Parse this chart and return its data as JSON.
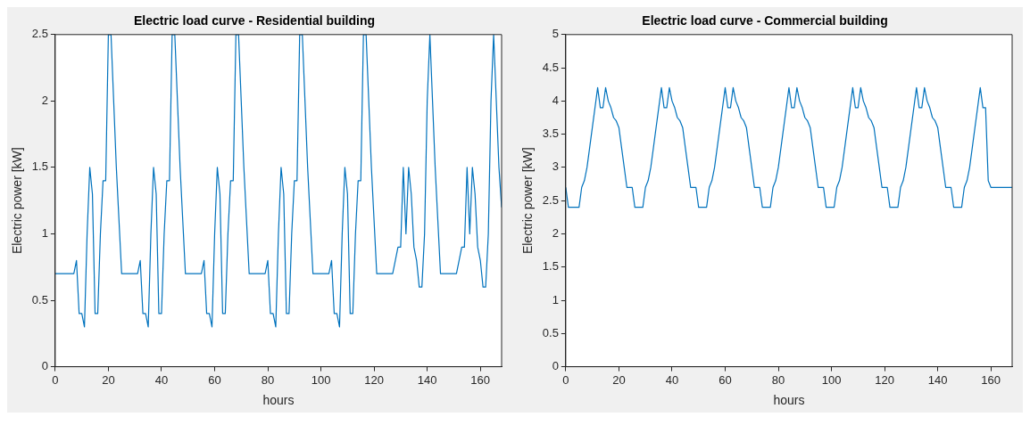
{
  "chart_data": [
    {
      "type": "line",
      "title": "Electric load curve - Residential building",
      "xlabel": "hours",
      "ylabel": "Electric power [kW]",
      "x": [
        0,
        1,
        2,
        3,
        4,
        5,
        6,
        7,
        8,
        9,
        10,
        11,
        12,
        13,
        14,
        15,
        16,
        17,
        18,
        19,
        20,
        21,
        22,
        23,
        24,
        25,
        26,
        27,
        28,
        29,
        30,
        31,
        32,
        33,
        34,
        35,
        36,
        37,
        38,
        39,
        40,
        41,
        42,
        43,
        44,
        45,
        46,
        47,
        48,
        49,
        50,
        51,
        52,
        53,
        54,
        55,
        56,
        57,
        58,
        59,
        60,
        61,
        62,
        63,
        64,
        65,
        66,
        67,
        68,
        69,
        70,
        71,
        72,
        73,
        74,
        75,
        76,
        77,
        78,
        79,
        80,
        81,
        82,
        83,
        84,
        85,
        86,
        87,
        88,
        89,
        90,
        91,
        92,
        93,
        94,
        95,
        96,
        97,
        98,
        99,
        100,
        101,
        102,
        103,
        104,
        105,
        106,
        107,
        108,
        109,
        110,
        111,
        112,
        113,
        114,
        115,
        116,
        117,
        118,
        119,
        120,
        121,
        122,
        123,
        124,
        125,
        126,
        127,
        128,
        129,
        130,
        131,
        132,
        133,
        134,
        135,
        136,
        137,
        138,
        139,
        140,
        141,
        142,
        143,
        144,
        145,
        146,
        147,
        148,
        149,
        150,
        151,
        152,
        153,
        154,
        155,
        156,
        157,
        158,
        159,
        160,
        161,
        162,
        163,
        164,
        165,
        166,
        167,
        168
      ],
      "series": [
        {
          "color": "#0072bd",
          "values": [
            0.7,
            0.7,
            0.7,
            0.7,
            0.7,
            0.7,
            0.7,
            0.7,
            0.8,
            0.4,
            0.4,
            0.3,
            1.0,
            1.5,
            1.3,
            0.4,
            0.4,
            1.0,
            1.4,
            1.4,
            2.5,
            2.5,
            2.0,
            1.5,
            1.1,
            0.7,
            0.7,
            0.7,
            0.7,
            0.7,
            0.7,
            0.7,
            0.8,
            0.4,
            0.4,
            0.3,
            1.0,
            1.5,
            1.3,
            0.4,
            0.4,
            1.0,
            1.4,
            1.4,
            2.5,
            2.5,
            2.0,
            1.5,
            1.1,
            0.7,
            0.7,
            0.7,
            0.7,
            0.7,
            0.7,
            0.7,
            0.8,
            0.4,
            0.4,
            0.3,
            1.0,
            1.5,
            1.3,
            0.4,
            0.4,
            1.0,
            1.4,
            1.4,
            2.5,
            2.5,
            2.0,
            1.5,
            1.1,
            0.7,
            0.7,
            0.7,
            0.7,
            0.7,
            0.7,
            0.7,
            0.8,
            0.4,
            0.4,
            0.3,
            1.0,
            1.5,
            1.3,
            0.4,
            0.4,
            1.0,
            1.4,
            1.4,
            2.5,
            2.5,
            2.0,
            1.5,
            1.1,
            0.7,
            0.7,
            0.7,
            0.7,
            0.7,
            0.7,
            0.7,
            0.8,
            0.4,
            0.4,
            0.3,
            1.0,
            1.5,
            1.3,
            0.4,
            0.4,
            1.0,
            1.4,
            1.4,
            2.5,
            2.5,
            2.0,
            1.5,
            1.1,
            0.7,
            0.7,
            0.7,
            0.7,
            0.7,
            0.7,
            0.7,
            0.8,
            0.9,
            0.9,
            1.5,
            1.0,
            1.5,
            1.3,
            0.9,
            0.8,
            0.6,
            0.6,
            1.0,
            2.0,
            2.5,
            2.0,
            1.5,
            1.1,
            0.7,
            0.7,
            0.7,
            0.7,
            0.7,
            0.7,
            0.7,
            0.8,
            0.9,
            0.9,
            1.5,
            1.0,
            1.5,
            1.3,
            0.9,
            0.8,
            0.6,
            0.6,
            1.0,
            2.0,
            2.5,
            2.0,
            1.5,
            1.2
          ]
        }
      ],
      "xlim": [
        0,
        168
      ],
      "xticks": [
        0,
        20,
        40,
        60,
        80,
        100,
        120,
        140,
        160
      ],
      "ylim": [
        0,
        2.5
      ],
      "yticks": [
        0,
        0.5,
        1,
        1.5,
        2,
        2.5
      ],
      "marker": "none",
      "line_style": "solid"
    },
    {
      "type": "line",
      "title": "Electric load curve - Commercial building",
      "xlabel": "hours",
      "ylabel": "Electric power [kW]",
      "x": [
        0,
        1,
        2,
        3,
        4,
        5,
        6,
        7,
        8,
        9,
        10,
        11,
        12,
        13,
        14,
        15,
        16,
        17,
        18,
        19,
        20,
        21,
        22,
        23,
        24,
        25,
        26,
        27,
        28,
        29,
        30,
        31,
        32,
        33,
        34,
        35,
        36,
        37,
        38,
        39,
        40,
        41,
        42,
        43,
        44,
        45,
        46,
        47,
        48,
        49,
        50,
        51,
        52,
        53,
        54,
        55,
        56,
        57,
        58,
        59,
        60,
        61,
        62,
        63,
        64,
        65,
        66,
        67,
        68,
        69,
        70,
        71,
        72,
        73,
        74,
        75,
        76,
        77,
        78,
        79,
        80,
        81,
        82,
        83,
        84,
        85,
        86,
        87,
        88,
        89,
        90,
        91,
        92,
        93,
        94,
        95,
        96,
        97,
        98,
        99,
        100,
        101,
        102,
        103,
        104,
        105,
        106,
        107,
        108,
        109,
        110,
        111,
        112,
        113,
        114,
        115,
        116,
        117,
        118,
        119,
        120,
        121,
        122,
        123,
        124,
        125,
        126,
        127,
        128,
        129,
        130,
        131,
        132,
        133,
        134,
        135,
        136,
        137,
        138,
        139,
        140,
        141,
        142,
        143,
        144,
        145,
        146,
        147,
        148,
        149,
        150,
        151,
        152,
        153,
        154,
        155,
        156,
        157,
        158,
        159,
        160,
        161,
        162,
        163,
        164,
        165,
        166,
        167,
        168
      ],
      "series": [
        {
          "color": "#0072bd",
          "values": [
            2.7,
            2.4,
            2.4,
            2.4,
            2.4,
            2.4,
            2.7,
            2.8,
            3.0,
            3.3,
            3.6,
            3.9,
            4.2,
            3.9,
            3.9,
            4.2,
            4.0,
            3.9,
            3.75,
            3.7,
            3.6,
            3.3,
            3.0,
            2.7,
            2.7,
            2.7,
            2.4,
            2.4,
            2.4,
            2.4,
            2.7,
            2.8,
            3.0,
            3.3,
            3.6,
            3.9,
            4.2,
            3.9,
            3.9,
            4.2,
            4.0,
            3.9,
            3.75,
            3.7,
            3.6,
            3.3,
            3.0,
            2.7,
            2.7,
            2.7,
            2.4,
            2.4,
            2.4,
            2.4,
            2.7,
            2.8,
            3.0,
            3.3,
            3.6,
            3.9,
            4.2,
            3.9,
            3.9,
            4.2,
            4.0,
            3.9,
            3.75,
            3.7,
            3.6,
            3.3,
            3.0,
            2.7,
            2.7,
            2.7,
            2.4,
            2.4,
            2.4,
            2.4,
            2.7,
            2.8,
            3.0,
            3.3,
            3.6,
            3.9,
            4.2,
            3.9,
            3.9,
            4.2,
            4.0,
            3.9,
            3.75,
            3.7,
            3.6,
            3.3,
            3.0,
            2.7,
            2.7,
            2.7,
            2.4,
            2.4,
            2.4,
            2.4,
            2.7,
            2.8,
            3.0,
            3.3,
            3.6,
            3.9,
            4.2,
            3.9,
            3.9,
            4.2,
            4.0,
            3.9,
            3.75,
            3.7,
            3.6,
            3.3,
            3.0,
            2.7,
            2.7,
            2.7,
            2.4,
            2.4,
            2.4,
            2.4,
            2.7,
            2.8,
            3.0,
            3.3,
            3.6,
            3.9,
            4.2,
            3.9,
            3.9,
            4.2,
            4.0,
            3.9,
            3.75,
            3.7,
            3.6,
            3.3,
            3.0,
            2.7,
            2.7,
            2.7,
            2.4,
            2.4,
            2.4,
            2.4,
            2.7,
            2.8,
            3.0,
            3.3,
            3.6,
            3.9,
            4.2,
            3.9,
            3.9,
            2.8,
            2.7,
            2.7,
            2.7,
            2.7,
            2.7,
            2.7,
            2.7,
            2.7,
            2.7
          ]
        }
      ],
      "xlim": [
        0,
        168
      ],
      "xticks": [
        0,
        20,
        40,
        60,
        80,
        100,
        120,
        140,
        160
      ],
      "ylim": [
        0,
        5
      ],
      "yticks": [
        0,
        0.5,
        1,
        1.5,
        2,
        2.5,
        3,
        3.5,
        4,
        4.5,
        5
      ],
      "marker": "none",
      "line_style": "solid"
    }
  ]
}
